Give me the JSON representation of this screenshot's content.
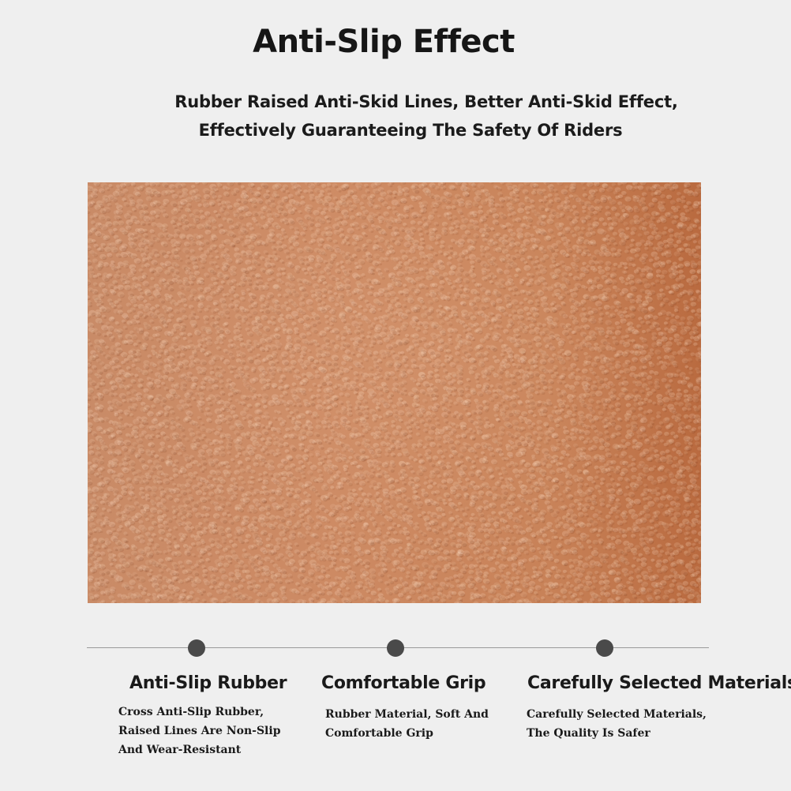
{
  "header": {
    "title": "Anti-Slip Effect",
    "subtitle_line1": "Rubber Raised Anti-Skid Lines, Better Anti-Skid Effect,",
    "subtitle_line2": "Effectively Guaranteeing The Safety Of Riders"
  },
  "texture": {
    "description_color": "#c98760",
    "edge_color": "#b96a3f"
  },
  "features": [
    {
      "title": "Anti-Slip Rubber",
      "desc": [
        "Cross Anti-Slip Rubber,",
        "Raised Lines Are Non-Slip",
        "And Wear-Resistant"
      ]
    },
    {
      "title": "Comfortable Grip",
      "desc": [
        "Rubber Material, Soft And",
        "Comfortable Grip"
      ]
    },
    {
      "title": "Carefully Selected Materials",
      "desc": [
        "Carefully Selected Materials,",
        "The Quality Is Safer"
      ]
    }
  ],
  "colors": {
    "background": "#efefef",
    "dot": "#4a4a4a",
    "line": "#9a9a9a"
  }
}
